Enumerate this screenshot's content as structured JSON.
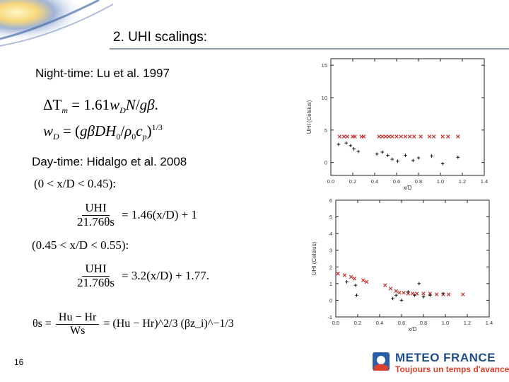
{
  "slide": {
    "title": "2. UHI scalings:",
    "page_number": "16"
  },
  "night": {
    "heading": "Night-time: Lu et al. 1997",
    "eq_line1": "ΔT_m = 1.61 w_D N / gβ.",
    "eq_line2": "w_D = (gβDH_0/ρ_0 c_p)^1/3"
  },
  "day": {
    "heading": "Day-time: Hidalgo et al. 2008",
    "cond1": "(0 < x/D < 0.45):",
    "eq1_lhs_num": "UHI",
    "eq1_lhs_den": "21.76θs",
    "eq1_rhs": "= 1.46(x/D) + 1",
    "cond2": "(0.45 < x/D < 0.55):",
    "eq2_lhs_num": "UHI",
    "eq2_lhs_den": "21.76θs",
    "eq2_rhs": "= 3.2(x/D) + 1.77.",
    "theta_lhs": "θs =",
    "theta_num": "Hu − Hr",
    "theta_den": "Ws",
    "theta_rhs": "= (Hu − Hr)^2/3 (βz_i)^−1/3"
  },
  "logo": {
    "name": "METEO FRANCE",
    "tagline": "Toujours un temps d'avance",
    "colors": {
      "name": "#1f4e8c",
      "tagline": "#d9402b",
      "mark_blue": "#2a5fa8",
      "mark_red": "#d9402b"
    }
  },
  "chart_data": [
    {
      "type": "scatter",
      "xlabel": "x/D",
      "ylabel": "UHI (Celsius)",
      "xlim": [
        0.0,
        1.4
      ],
      "ylim": [
        -2,
        16
      ],
      "xticks": [
        "0.0",
        "0.2",
        "0.4",
        "0.6",
        "0.8",
        "1.0",
        "1.2",
        "1.4"
      ],
      "yticks": [
        "0",
        "5",
        "10",
        "15"
      ],
      "series": [
        {
          "marker": "x",
          "color": "#c0302a",
          "points": [
            [
              0.08,
              4
            ],
            [
              0.12,
              4
            ],
            [
              0.15,
              4
            ],
            [
              0.2,
              4
            ],
            [
              0.22,
              4
            ],
            [
              0.28,
              4
            ],
            [
              0.3,
              4
            ],
            [
              0.44,
              4
            ],
            [
              0.47,
              4
            ],
            [
              0.5,
              4
            ],
            [
              0.53,
              4
            ],
            [
              0.56,
              4
            ],
            [
              0.6,
              4
            ],
            [
              0.64,
              4
            ],
            [
              0.68,
              4
            ],
            [
              0.72,
              4
            ],
            [
              0.76,
              4
            ],
            [
              0.82,
              4
            ],
            [
              0.9,
              4
            ],
            [
              0.94,
              4
            ],
            [
              1.02,
              4
            ],
            [
              1.07,
              4
            ],
            [
              1.16,
              4
            ]
          ]
        },
        {
          "marker": "+",
          "color": "#111111",
          "points": [
            [
              0.07,
              2.8
            ],
            [
              0.14,
              3.0
            ],
            [
              0.18,
              2.6
            ],
            [
              0.21,
              2.1
            ],
            [
              0.25,
              1.7
            ],
            [
              0.42,
              1.3
            ],
            [
              0.47,
              1.6
            ],
            [
              0.52,
              1.1
            ],
            [
              0.56,
              0.5
            ],
            [
              0.61,
              0.2
            ],
            [
              0.68,
              1.1
            ],
            [
              0.75,
              0.3
            ],
            [
              0.8,
              0.7
            ],
            [
              0.92,
              1.0
            ],
            [
              1.02,
              -0.2
            ],
            [
              1.16,
              0.8
            ]
          ]
        }
      ]
    },
    {
      "type": "scatter",
      "xlabel": "x/D",
      "ylabel": "UHI (Celsius)",
      "xlim": [
        0.0,
        1.4
      ],
      "ylim": [
        -1,
        6
      ],
      "xticks": [
        "0.0",
        "0.2",
        "0.4",
        "0.6",
        "0.8",
        "1.0",
        "1.2",
        "1.4"
      ],
      "yticks": [
        "-1",
        "0",
        "1",
        "2",
        "3",
        "4",
        "5",
        "6"
      ],
      "series": [
        {
          "marker": "x",
          "color": "#c0302a",
          "points": [
            [
              0.02,
              1.6
            ],
            [
              0.08,
              1.5
            ],
            [
              0.14,
              1.4
            ],
            [
              0.17,
              1.3
            ],
            [
              0.25,
              1.2
            ],
            [
              0.28,
              1.1
            ],
            [
              0.45,
              0.9
            ],
            [
              0.5,
              0.7
            ],
            [
              0.55,
              0.55
            ],
            [
              0.58,
              0.45
            ],
            [
              0.62,
              0.45
            ],
            [
              0.66,
              0.4
            ],
            [
              0.7,
              0.4
            ],
            [
              0.74,
              0.4
            ],
            [
              0.8,
              0.4
            ],
            [
              0.86,
              0.4
            ],
            [
              0.92,
              0.35
            ],
            [
              0.98,
              0.35
            ],
            [
              1.03,
              0.35
            ],
            [
              1.16,
              0.35
            ]
          ]
        },
        {
          "marker": "+",
          "color": "#111111",
          "points": [
            [
              0.1,
              1.1
            ],
            [
              0.18,
              0.9
            ],
            [
              0.19,
              0.3
            ],
            [
              0.52,
              0.1
            ],
            [
              0.55,
              0.3
            ],
            [
              0.6,
              0.0
            ],
            [
              0.66,
              0.5
            ],
            [
              0.72,
              0.3
            ],
            [
              0.76,
              1.0
            ],
            [
              0.8,
              0.2
            ],
            [
              0.86,
              0.3
            ],
            [
              0.98,
              0.4
            ]
          ]
        }
      ]
    }
  ]
}
